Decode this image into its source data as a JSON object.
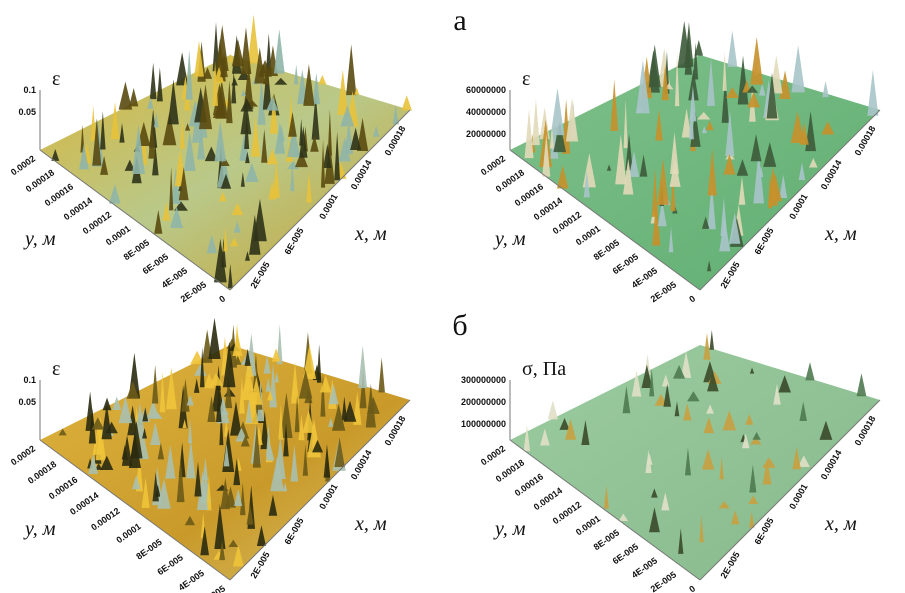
{
  "section_labels": [
    "а",
    "б"
  ],
  "panels": [
    {
      "z_label": "ε",
      "y_label": "y, м",
      "x_label": "x, м",
      "z_ticks": [
        "0.1",
        "0.05"
      ],
      "y_ticks": [
        "0.0002",
        "0.00018",
        "0.00016",
        "0.00014",
        "0.00012",
        "0.0001",
        "8E-005",
        "6E-005",
        "4E-005",
        "2E-005",
        "0"
      ],
      "x_ticks": [
        "2E-005",
        "6E-005",
        "0.0001",
        "0.00014",
        "0.00018"
      ]
    },
    {
      "z_label": "ε",
      "y_label": "y, м",
      "x_label": "x, м",
      "z_ticks": [
        "60000000",
        "40000000",
        "20000000"
      ],
      "y_ticks": [
        "0.0002",
        "0.00018",
        "0.00016",
        "0.00014",
        "0.00012",
        "0.0001",
        "8E-005",
        "6E-005",
        "4E-005",
        "2E-005",
        "0"
      ],
      "x_ticks": [
        "2E-005",
        "6E-005",
        "0.0001",
        "0.00014",
        "0.00018"
      ]
    },
    {
      "z_label": "ε",
      "y_label": "y, м",
      "x_label": "x, м",
      "z_ticks": [
        "0.1",
        "0.05"
      ],
      "y_ticks": [
        "0.0002",
        "0.00018",
        "0.00016",
        "0.00014",
        "0.00012",
        "0.0001",
        "8E-005",
        "6E-005",
        "4E-005",
        "2E-005"
      ],
      "x_ticks": [
        "2E-005",
        "6E-005",
        "0.0001",
        "0.00014",
        "0.00018"
      ]
    },
    {
      "z_label": "σ, Па",
      "y_label": "y, м",
      "x_label": "x, м",
      "z_ticks": [
        "300000000",
        "200000000",
        "100000000"
      ],
      "y_ticks": [
        "0.0002",
        "0.00018",
        "0.00016",
        "0.00014",
        "0.00012",
        "0.0001",
        "8E-005",
        "6E-005",
        "4E-005",
        "2E-005",
        "0"
      ],
      "x_ticks": [
        "2E-005",
        "6E-005",
        "0.0001",
        "0.00014",
        "0.00018"
      ]
    }
  ]
}
